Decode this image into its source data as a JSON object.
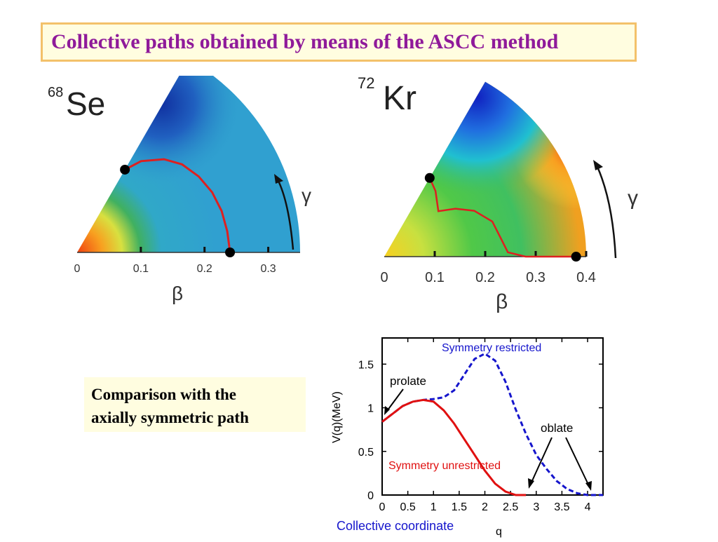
{
  "title": "Collective paths obtained by means of the ASCC method",
  "note": "Comparison with the\naxially symmetric path",
  "colors": {
    "title": "#8f1a9a",
    "path": "#dd2020",
    "unrestricted": "#e01010",
    "restricted": "#1515cc",
    "axis_title_blue": "#1515cc"
  },
  "chart_data": [
    {
      "type": "heatmap",
      "nucleus_mass": "68",
      "nucleus_symbol": "Se",
      "xlabel": "β",
      "gamma_label": "γ",
      "x_ticks": [
        "0",
        "0.1",
        "0.2",
        "0.3"
      ],
      "xlim": [
        0,
        0.35
      ],
      "gamma_range_deg": [
        0,
        60
      ],
      "path_endpoints": [
        {
          "beta": 0.15,
          "gamma_deg": 60
        },
        {
          "beta": 0.24,
          "gamma_deg": 0
        }
      ],
      "path": [
        [
          0.15,
          60
        ],
        [
          0.175,
          55
        ],
        [
          0.2,
          47
        ],
        [
          0.215,
          40
        ],
        [
          0.225,
          32
        ],
        [
          0.232,
          24
        ],
        [
          0.236,
          16
        ],
        [
          0.238,
          8
        ],
        [
          0.24,
          0
        ]
      ]
    },
    {
      "type": "heatmap",
      "nucleus_mass": "72",
      "nucleus_symbol": "Kr",
      "xlabel": "β",
      "gamma_label": "γ",
      "x_ticks": [
        "0",
        "0.1",
        "0.2",
        "0.3",
        "0.4"
      ],
      "xlim": [
        0,
        0.4
      ],
      "gamma_range_deg": [
        0,
        60
      ],
      "path_endpoints": [
        {
          "beta": 0.18,
          "gamma_deg": 60
        },
        {
          "beta": 0.38,
          "gamma_deg": 0
        }
      ],
      "path": [
        [
          0.18,
          60
        ],
        [
          0.165,
          52
        ],
        [
          0.14,
          40
        ],
        [
          0.17,
          34
        ],
        [
          0.2,
          27
        ],
        [
          0.225,
          18
        ],
        [
          0.235,
          8
        ],
        [
          0.245,
          2
        ],
        [
          0.28,
          0
        ],
        [
          0.38,
          0
        ]
      ]
    },
    {
      "type": "line",
      "xlabel": "q",
      "xlabel_extra": "Collective coordinate",
      "ylabel": "V(q)(MeV)",
      "xlim": [
        0,
        4.3
      ],
      "ylim": [
        0,
        1.8
      ],
      "x_ticks": [
        "0",
        "0.5",
        "1",
        "1.5",
        "2",
        "2.5",
        "3",
        "3.5",
        "4"
      ],
      "y_ticks": [
        "0",
        "0.5",
        "1",
        "1.5"
      ],
      "annotations": [
        "prolate",
        "oblate"
      ],
      "series": [
        {
          "name": "Symmetry restricted",
          "style": "dashed",
          "color": "#1515cc",
          "x": [
            0,
            0.2,
            0.4,
            0.6,
            0.8,
            1.0,
            1.2,
            1.4,
            1.6,
            1.8,
            2.0,
            2.2,
            2.4,
            2.6,
            2.8,
            3.0,
            3.2,
            3.4,
            3.6,
            3.8,
            4.0,
            4.2,
            4.3
          ],
          "y": [
            0.84,
            0.93,
            1.02,
            1.07,
            1.09,
            1.1,
            1.12,
            1.2,
            1.38,
            1.56,
            1.62,
            1.54,
            1.3,
            0.98,
            0.7,
            0.46,
            0.3,
            0.16,
            0.07,
            0.02,
            0.0,
            0.0,
            0.0
          ]
        },
        {
          "name": "Symmetry unrestricted",
          "style": "solid",
          "color": "#e01010",
          "x": [
            0,
            0.2,
            0.4,
            0.6,
            0.8,
            1.0,
            1.2,
            1.4,
            1.6,
            1.8,
            2.0,
            2.2,
            2.4,
            2.6,
            2.8
          ],
          "y": [
            0.84,
            0.93,
            1.02,
            1.07,
            1.09,
            1.07,
            0.97,
            0.82,
            0.64,
            0.46,
            0.28,
            0.13,
            0.04,
            0.0,
            0.0
          ]
        }
      ]
    }
  ]
}
